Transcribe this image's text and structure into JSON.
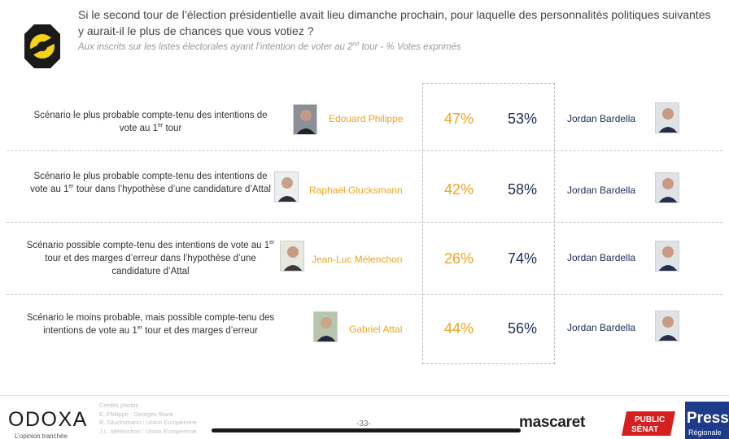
{
  "header": {
    "question": "Si le second tour de l’élection présidentielle avait lieu dimanche prochain, pour laquelle des personnalités politiques suivantes y aurait-il le plus de chances que vous votiez ?",
    "subtitle_pre": "Aux inscrits sur les listes électorales ayant l’intention de voter au 2",
    "subtitle_sup": "nd",
    "subtitle_post": " tour  - % Votes exprimés"
  },
  "rows": [
    {
      "scenario_a": "Scénario le plus probable compte-tenu des intentions de vote au 1",
      "scenario_sup": "er",
      "scenario_b": " tour",
      "candidate": "Edouard Philippe",
      "pct_candidate": "47%",
      "pct_opponent": "53%",
      "opponent": "Jordan Bardella"
    },
    {
      "scenario_a": "Scénario le plus probable compte-tenu des intentions de vote au 1",
      "scenario_sup": "er",
      "scenario_b": " tour dans l’hypothèse d’une candidature d’Attal",
      "candidate": "Raphaël Glucksmann",
      "pct_candidate": "42%",
      "pct_opponent": "58%",
      "opponent": "Jordan Bardella"
    },
    {
      "scenario_a": "Scénario possible compte-tenu des intentions de vote au 1",
      "scenario_sup": "er",
      "scenario_b": " tour et des marges d’erreur dans l’hypothèse d’une candidature d’Attal",
      "candidate": "Jean-Luc Mélenchon",
      "pct_candidate": "26%",
      "pct_opponent": "74%",
      "opponent": "Jordan Bardella"
    },
    {
      "scenario_a": "Scénario le moins probable, mais possible compte-tenu des intentions de vote au 1",
      "scenario_sup": "er",
      "scenario_b": " tour et des marges d’erreur",
      "candidate": "Gabriel Attal",
      "pct_candidate": "44%",
      "pct_opponent": "56%",
      "opponent": "Jordan Bardella"
    }
  ],
  "footer": {
    "brand": "ODOXA",
    "brand_tagline": "L’opinion tranchée",
    "credits_title": "Crédits photos :",
    "credits_lines": [
      "E. Philippe : Georges Biard",
      "R. Glucksmann : Union Européenne",
      "J.L. Mélenchon : Union Européenne"
    ],
    "page": "-33-",
    "partner1": "mascaret",
    "partner2_line1": "PUBLIC",
    "partner2_line2": "SÉNAT",
    "partner3_line1": "Presse",
    "partner3_line2": "Régionale"
  },
  "colors": {
    "candidate": "#f0a41c",
    "opponent": "#1c2c56",
    "logo_yellow": "#f4d31a",
    "public_senat_red": "#d6201f",
    "presse_blue": "#1e3a8a"
  },
  "icons": {
    "logo": "odoxa-badge-icon",
    "portrait": "person-photo-icon"
  }
}
